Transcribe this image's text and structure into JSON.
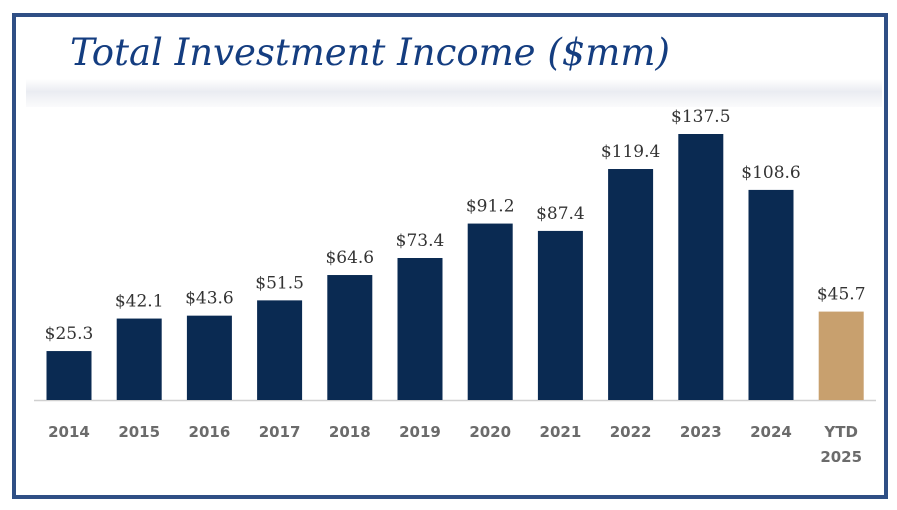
{
  "title": "Total Investment Income ($mm)",
  "colors": {
    "bar": "#0a2a52",
    "highlight": "#c8a06e",
    "frame": "#2f4f85",
    "axis": "#d0d0d0"
  },
  "chart_data": {
    "type": "bar",
    "title": "Total Investment Income ($mm)",
    "categories": [
      "2014",
      "2015",
      "2016",
      "2017",
      "2018",
      "2019",
      "2020",
      "2021",
      "2022",
      "2023",
      "2024",
      "YTD 2025"
    ],
    "category_lines": [
      [
        "2014"
      ],
      [
        "2015"
      ],
      [
        "2016"
      ],
      [
        "2017"
      ],
      [
        "2018"
      ],
      [
        "2019"
      ],
      [
        "2020"
      ],
      [
        "2021"
      ],
      [
        "2022"
      ],
      [
        "2023"
      ],
      [
        "2024"
      ],
      [
        "YTD",
        "2025"
      ]
    ],
    "values": [
      25.3,
      42.1,
      43.6,
      51.5,
      64.6,
      73.4,
      91.2,
      87.4,
      119.4,
      137.5,
      108.6,
      45.7
    ],
    "value_labels": [
      "$25.3",
      "$42.1",
      "$43.6",
      "$51.5",
      "$64.6",
      "$73.4",
      "$91.2",
      "$87.4",
      "$119.4",
      "$137.5",
      "$108.6",
      "$45.7"
    ],
    "highlight_index": 11,
    "ylim": [
      0,
      137.5
    ],
    "grid": false,
    "xlabel": "",
    "ylabel": ""
  }
}
